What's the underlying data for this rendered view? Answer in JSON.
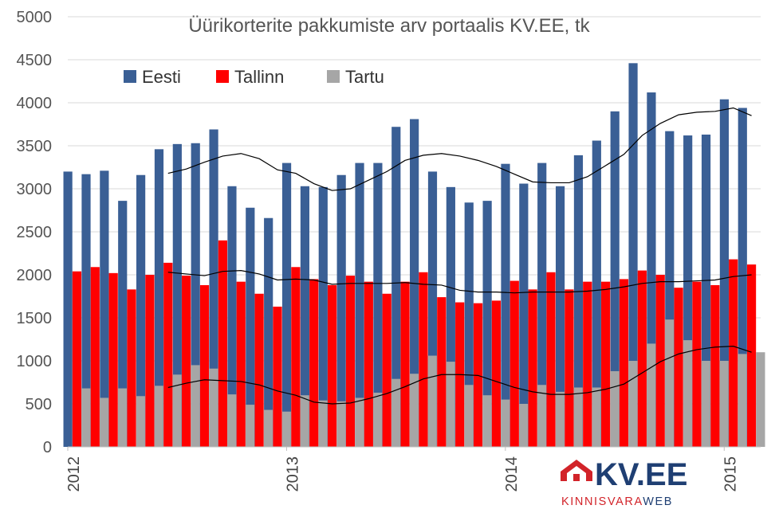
{
  "chart_data": {
    "type": "bar",
    "title": "Üürikorterite pakkumiste arv portaalis KV.EE, tk",
    "ylim": [
      0,
      5000
    ],
    "yticks": [
      "0",
      "500",
      "1000",
      "1500",
      "2000",
      "2500",
      "3000",
      "3500",
      "4000",
      "4500",
      "5000"
    ],
    "xtick_labels": [
      {
        "label": "2012",
        "index": 0
      },
      {
        "label": "2013",
        "index": 12
      },
      {
        "label": "2014",
        "index": 24
      },
      {
        "label": "2015",
        "index": 36
      }
    ],
    "categories": [
      "2012-01",
      "2012-02",
      "2012-03",
      "2012-04",
      "2012-05",
      "2012-06",
      "2012-07",
      "2012-08",
      "2012-09",
      "2012-10",
      "2012-11",
      "2012-12",
      "2013-01",
      "2013-02",
      "2013-03",
      "2013-04",
      "2013-05",
      "2013-06",
      "2013-07",
      "2013-08",
      "2013-09",
      "2013-10",
      "2013-11",
      "2013-12",
      "2014-01",
      "2014-02",
      "2014-03",
      "2014-04",
      "2014-05",
      "2014-06",
      "2014-07",
      "2014-08",
      "2014-09",
      "2014-10",
      "2014-11",
      "2014-12",
      "2015-01",
      "2015-02"
    ],
    "series": [
      {
        "name": "Eesti",
        "color": "#3a5f95",
        "values": [
          3200,
          3170,
          3210,
          2860,
          3160,
          3460,
          3520,
          3530,
          3690,
          3030,
          2780,
          2660,
          3300,
          3030,
          3020,
          3160,
          3300,
          3300,
          3720,
          3810,
          3200,
          3020,
          2840,
          2860,
          3290,
          3060,
          3300,
          3030,
          3390,
          3560,
          3900,
          4460,
          4120,
          3670,
          3620,
          3630,
          4040,
          3940
        ],
        "trend": [
          null,
          null,
          null,
          null,
          null,
          3180,
          3230,
          3310,
          3380,
          3410,
          3350,
          3220,
          3180,
          3060,
          2980,
          3000,
          3100,
          3200,
          3330,
          3390,
          3410,
          3380,
          3330,
          3260,
          3170,
          3080,
          3070,
          3070,
          3140,
          3270,
          3400,
          3620,
          3760,
          3860,
          3890,
          3900,
          3940,
          3850
        ]
      },
      {
        "name": "Tallinn",
        "color": "#ff0000",
        "values": [
          2040,
          2090,
          2020,
          1830,
          2000,
          2140,
          1990,
          1880,
          2400,
          1920,
          1780,
          1630,
          2090,
          1950,
          1880,
          1990,
          1920,
          1780,
          1920,
          2030,
          1740,
          1680,
          1670,
          1700,
          1930,
          1830,
          2030,
          1830,
          1920,
          1920,
          1950,
          2050,
          2000,
          1850,
          1920,
          1880,
          2180,
          2120
        ],
        "trend": [
          null,
          null,
          null,
          null,
          null,
          2030,
          2010,
          1990,
          2040,
          2050,
          2010,
          1940,
          1950,
          1940,
          1890,
          1900,
          1900,
          1900,
          1910,
          1890,
          1880,
          1820,
          1800,
          1800,
          1790,
          1800,
          1800,
          1800,
          1810,
          1830,
          1860,
          1900,
          1920,
          1920,
          1930,
          1940,
          1980,
          2000
        ]
      },
      {
        "name": "Tartu",
        "color": "#a6a6a6",
        "values": [
          680,
          570,
          680,
          590,
          710,
          840,
          950,
          910,
          610,
          490,
          430,
          410,
          600,
          540,
          530,
          570,
          630,
          790,
          850,
          1060,
          990,
          720,
          600,
          550,
          500,
          720,
          640,
          690,
          690,
          880,
          1000,
          1200,
          1480,
          1240,
          1000,
          1000,
          1080,
          1100
        ],
        "trend": [
          null,
          null,
          null,
          null,
          null,
          690,
          740,
          780,
          770,
          760,
          720,
          650,
          600,
          520,
          500,
          510,
          560,
          620,
          700,
          790,
          840,
          840,
          830,
          760,
          690,
          640,
          610,
          610,
          630,
          670,
          730,
          860,
          990,
          1080,
          1130,
          1160,
          1170,
          1100
        ]
      }
    ],
    "legend": "top-left, inside plot",
    "grid": true
  },
  "logo": {
    "name": "KV.EE",
    "tagline_a": "KINNISVARA",
    "tagline_b": "WEB"
  }
}
